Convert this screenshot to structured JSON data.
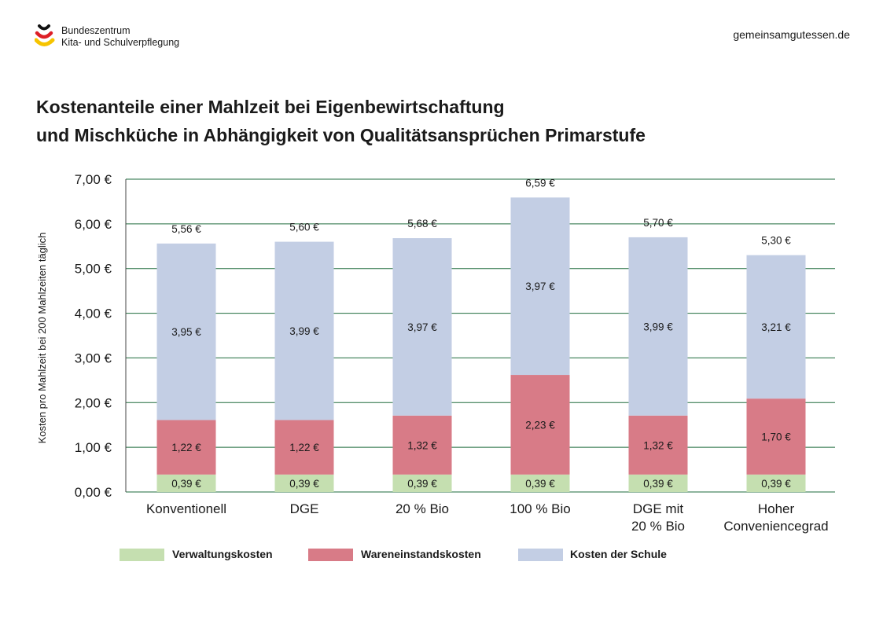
{
  "header": {
    "org_line1": "Bundeszentrum",
    "org_line2": "Kita- und Schulverpflegung",
    "website": "gemeinsamgutessen.de"
  },
  "chart_data": {
    "type": "bar",
    "stacked": true,
    "title_line1": "Kostenanteile einer Mahlzeit bei Eigenbewirtschaftung",
    "title_line2": "und Mischküche in Abhängigkeit von Qualitätsansprüchen Primarstufe",
    "ylabel": "Kosten pro Mahlzeit bei 200 Mahlzeiten täglich",
    "xlabel": "",
    "ylim": [
      0,
      7
    ],
    "yticks": [
      "0,00 €",
      "1,00 €",
      "2,00 €",
      "3,00 €",
      "4,00 €",
      "5,00 €",
      "6,00 €",
      "7,00 €"
    ],
    "grid": true,
    "categories": [
      [
        "Konventionell"
      ],
      [
        "DGE"
      ],
      [
        "20 % Bio"
      ],
      [
        "100 % Bio"
      ],
      [
        "DGE mit",
        "20 % Bio"
      ],
      [
        "Hoher",
        "Conveniencegrad"
      ]
    ],
    "series": [
      {
        "name": "Verwaltungskosten",
        "color": "#c5dfb0",
        "values": [
          0.39,
          0.39,
          0.39,
          0.39,
          0.39,
          0.39
        ],
        "labels": [
          "0,39 €",
          "0,39 €",
          "0,39 €",
          "0,39 €",
          "0,39 €",
          "0,39 €"
        ]
      },
      {
        "name": "Wareneinstandskosten",
        "color": "#d87b87",
        "values": [
          1.22,
          1.22,
          1.32,
          2.23,
          1.32,
          1.7
        ],
        "labels": [
          "1,22 €",
          "1,22 €",
          "1,32 €",
          "2,23 €",
          "1,32 €",
          "1,70 €"
        ]
      },
      {
        "name": "Kosten der Schule",
        "color": "#c3cee4",
        "values": [
          3.95,
          3.99,
          3.97,
          3.97,
          3.99,
          3.21
        ],
        "labels": [
          "3,95 €",
          "3,99 €",
          "3,97 €",
          "3,97 €",
          "3,99 €",
          "3,21 €"
        ]
      }
    ],
    "totals": [
      5.56,
      5.6,
      5.68,
      6.59,
      5.7,
      5.3
    ],
    "total_labels": [
      "5,56 €",
      "5,60 €",
      "5,68 €",
      "6,59 €",
      "5,70 €",
      "5,30 €"
    ],
    "legend_position": "bottom",
    "grid_color": "#1e6b3c"
  }
}
